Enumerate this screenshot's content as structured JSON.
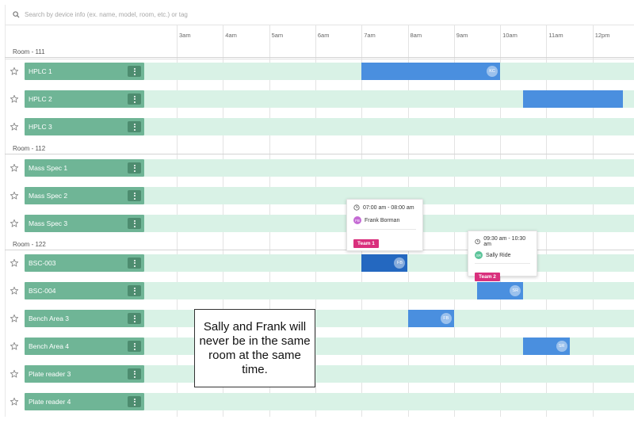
{
  "search": {
    "placeholder": "Search by device info (ex. name, model, room, etc.) or tag"
  },
  "timeline": {
    "hours": [
      "3am",
      "4am",
      "5am",
      "6am",
      "7am",
      "8am",
      "9am",
      "10am",
      "11am",
      "12pm"
    ]
  },
  "rooms": [
    {
      "label": "Room - 111",
      "devices": [
        "HPLC 1",
        "HPLC 2",
        "HPLC 3"
      ]
    },
    {
      "label": "Room - 112",
      "devices": [
        "Mass Spec 1",
        "Mass Spec 2",
        "Mass Spec 3"
      ]
    },
    {
      "label": "Room - 122",
      "devices": [
        "BSC-003",
        "BSC-004",
        "Bench Area 3",
        "Bench Area 4",
        "Plate reader 3",
        "Plate reader 4"
      ]
    }
  ],
  "bookings": [
    {
      "device": "HPLC 1",
      "start_hour": 7.0,
      "end_hour": 10.0,
      "initials": "KC"
    },
    {
      "device": "HPLC 2",
      "start_hour": 10.5,
      "end_hour": 12.65,
      "initials": ""
    },
    {
      "device": "BSC-003",
      "start_hour": 7.0,
      "end_hour": 8.0,
      "initials": "FB",
      "dark": true
    },
    {
      "device": "BSC-004",
      "start_hour": 9.5,
      "end_hour": 10.5,
      "initials": "SR"
    },
    {
      "device": "Bench Area 3",
      "start_hour": 8.0,
      "end_hour": 9.0,
      "initials": "FB"
    },
    {
      "device": "Bench Area 4",
      "start_hour": 10.5,
      "end_hour": 11.5,
      "initials": "SR"
    }
  ],
  "tooltips": {
    "frank": {
      "time": "07:00 am - 08:00 am",
      "initials": "FB",
      "name": "Frank Borman",
      "team": "Team 1"
    },
    "sally": {
      "time": "09:30 am - 10:30 am",
      "initials": "SR",
      "name": "Sally Ride",
      "team": "Team 2"
    }
  },
  "callout": {
    "text": "Sally and Frank will never be in the same room at the same time."
  },
  "colors": {
    "device": "#6fb596",
    "lane": "#d9f2e6",
    "booking": "#4a8fdf",
    "team": "#d9307d",
    "frank_avatar": "#c46ad4",
    "sally_avatar": "#5cc49a"
  }
}
